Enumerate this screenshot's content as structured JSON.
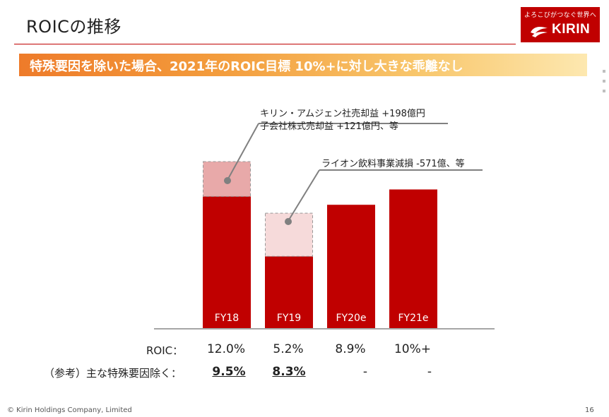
{
  "slide": {
    "title": "ROICの推移",
    "banner": "特殊要因を除いた場合、2021年のROIC目標 10%+に対し大きな乖離なし",
    "page_number": "16",
    "copyright": "© Kirin Holdings Company, Limited"
  },
  "logo": {
    "tagline": "よろこびがつなぐ世界へ",
    "name": "KIRIN",
    "mark_icon": "kirin-emblem-icon"
  },
  "colors": {
    "accent": "#c00000",
    "ghost_fy18": "#e8a9a9",
    "ghost_fy19": "#f6dada"
  },
  "annotations": {
    "fy18_line1": "キリン・アムジェン社売却益 +198億円",
    "fy18_line2": "子会社株式売却益 +121億円、等",
    "fy19_line1": "ライオン飲料事業減損 -571億、等"
  },
  "table": {
    "roic_label": "ROIC：",
    "adjusted_label": "（参考）主な特殊要因除く：",
    "roic_values": [
      "12.0%",
      "5.2%",
      "8.9%",
      "10%+"
    ],
    "adjusted_values": [
      "9.5%",
      "8.3%",
      "-",
      "-"
    ]
  },
  "chart_data": {
    "type": "bar",
    "categories": [
      "FY18",
      "FY19",
      "FY20e",
      "FY21e"
    ],
    "series": [
      {
        "values": [
          12.0,
          5.2,
          8.9,
          10.0
        ]
      },
      {
        "values": [
          9.5,
          8.3,
          null,
          null
        ]
      }
    ],
    "unit": "%"
  }
}
